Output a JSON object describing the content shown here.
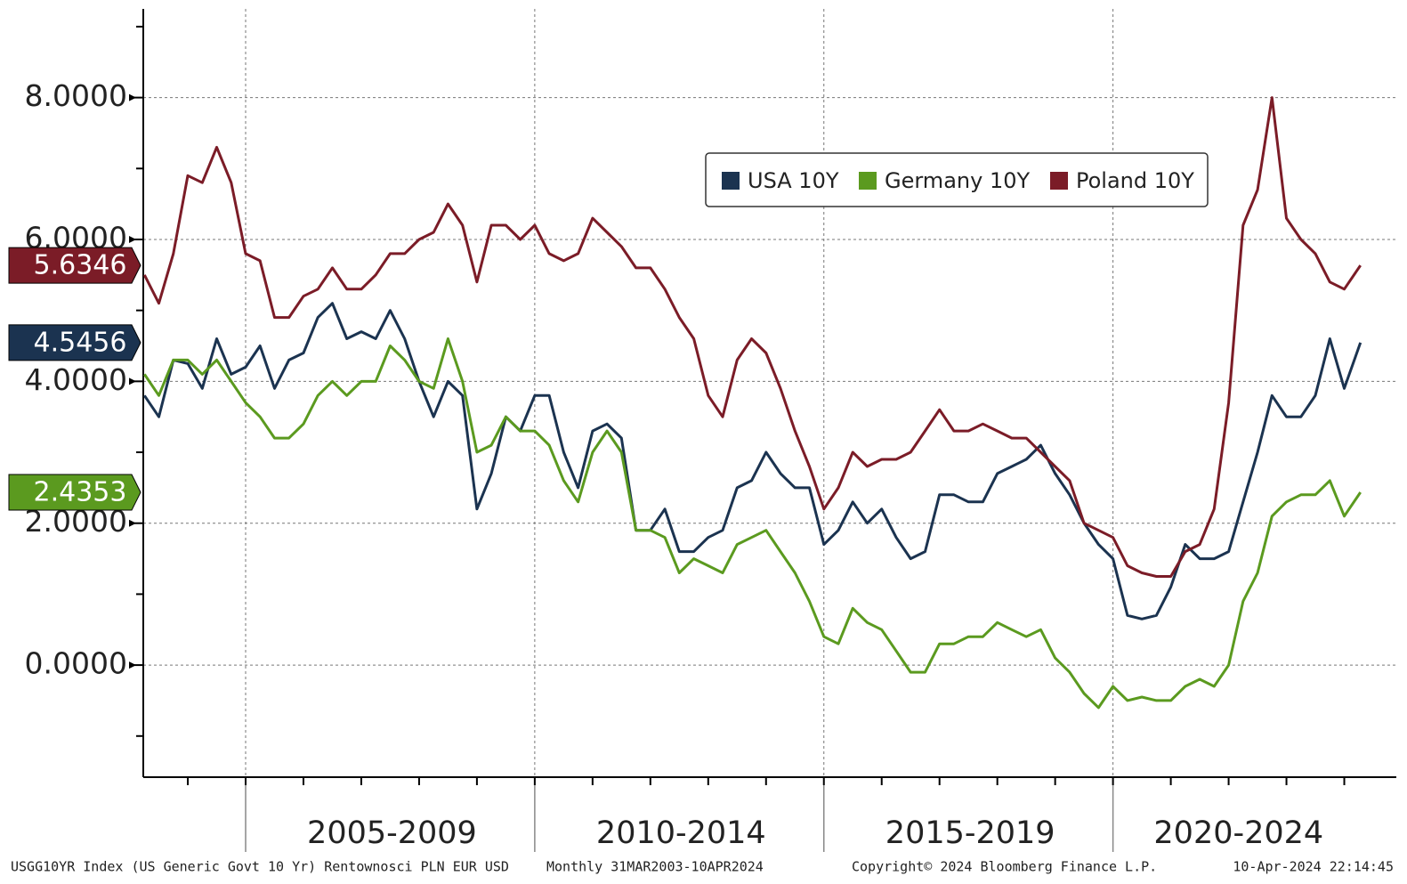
{
  "chart_data": {
    "type": "line",
    "legend": "top-right",
    "grid": true,
    "xlim": [
      2003.23,
      2024.9
    ],
    "ylim": [
      -1.58,
      9.25
    ],
    "yticks": [
      {
        "value": 0,
        "label": "0.0000"
      },
      {
        "value": 2,
        "label": "2.0000"
      },
      {
        "value": 4,
        "label": "4.0000"
      },
      {
        "value": 6,
        "label": "6.0000"
      },
      {
        "value": 8,
        "label": "8.0000"
      }
    ],
    "yminorticks": [
      -1,
      1,
      3,
      5,
      7,
      9
    ],
    "xticks": [
      2004,
      2005,
      2006,
      2007,
      2008,
      2009,
      2010,
      2011,
      2012,
      2013,
      2014,
      2015,
      2016,
      2017,
      2018,
      2019,
      2020,
      2021,
      2022,
      2023,
      2024
    ],
    "periods": [
      {
        "label": "2005-2009",
        "start": 2005,
        "end": 2010
      },
      {
        "label": "2010-2014",
        "start": 2010,
        "end": 2015
      },
      {
        "label": "2015-2019",
        "start": 2015,
        "end": 2020
      },
      {
        "label": "2020-2024",
        "start": 2020,
        "end": 2025
      }
    ],
    "x": [
      2003.25,
      2003.5,
      2003.75,
      2004,
      2004.25,
      2004.5,
      2004.75,
      2005,
      2005.25,
      2005.5,
      2005.75,
      2006,
      2006.25,
      2006.5,
      2006.75,
      2007,
      2007.25,
      2007.5,
      2007.75,
      2008,
      2008.25,
      2008.5,
      2008.75,
      2009,
      2009.25,
      2009.5,
      2009.75,
      2010,
      2010.25,
      2010.5,
      2010.75,
      2011,
      2011.25,
      2011.5,
      2011.75,
      2012,
      2012.25,
      2012.5,
      2012.75,
      2013,
      2013.25,
      2013.5,
      2013.75,
      2014,
      2014.25,
      2014.5,
      2014.75,
      2015,
      2015.25,
      2015.5,
      2015.75,
      2016,
      2016.25,
      2016.5,
      2016.75,
      2017,
      2017.25,
      2017.5,
      2017.75,
      2018,
      2018.25,
      2018.5,
      2018.75,
      2019,
      2019.25,
      2019.5,
      2019.75,
      2020,
      2020.25,
      2020.5,
      2020.75,
      2021,
      2021.25,
      2021.5,
      2021.75,
      2022,
      2022.25,
      2022.5,
      2022.75,
      2023,
      2023.25,
      2023.5,
      2023.75,
      2024,
      2024.28
    ],
    "series": [
      {
        "name": "USA 10Y",
        "color": "#1b3350",
        "values": [
          3.8,
          3.5,
          4.3,
          4.25,
          3.9,
          4.6,
          4.1,
          4.2,
          4.5,
          3.9,
          4.3,
          4.4,
          4.9,
          5.1,
          4.6,
          4.7,
          4.6,
          5.0,
          4.6,
          4.0,
          3.5,
          4.0,
          3.8,
          2.2,
          2.7,
          3.5,
          3.3,
          3.8,
          3.8,
          3.0,
          2.5,
          3.3,
          3.4,
          3.2,
          1.9,
          1.9,
          2.2,
          1.6,
          1.6,
          1.8,
          1.9,
          2.5,
          2.6,
          3.0,
          2.7,
          2.5,
          2.5,
          1.7,
          1.9,
          2.3,
          2.0,
          2.2,
          1.8,
          1.5,
          1.6,
          2.4,
          2.4,
          2.3,
          2.3,
          2.7,
          2.8,
          2.9,
          3.1,
          2.7,
          2.4,
          2.0,
          1.7,
          1.5,
          0.7,
          0.65,
          0.7,
          1.1,
          1.7,
          1.5,
          1.5,
          1.6,
          2.3,
          3.0,
          3.8,
          3.5,
          3.5,
          3.8,
          4.6,
          3.9,
          4.5456
        ]
      },
      {
        "name": "Germany 10Y",
        "color": "#5b9a1f",
        "values": [
          4.1,
          3.8,
          4.3,
          4.3,
          4.1,
          4.3,
          4.0,
          3.7,
          3.5,
          3.2,
          3.2,
          3.4,
          3.8,
          4.0,
          3.8,
          4.0,
          4.0,
          4.5,
          4.3,
          4.0,
          3.9,
          4.6,
          4.0,
          3.0,
          3.1,
          3.5,
          3.3,
          3.3,
          3.1,
          2.6,
          2.3,
          3.0,
          3.3,
          3.0,
          1.9,
          1.9,
          1.8,
          1.3,
          1.5,
          1.4,
          1.3,
          1.7,
          1.8,
          1.9,
          1.6,
          1.3,
          0.9,
          0.4,
          0.3,
          0.8,
          0.6,
          0.5,
          0.2,
          -0.1,
          -0.1,
          0.3,
          0.3,
          0.4,
          0.4,
          0.6,
          0.5,
          0.4,
          0.5,
          0.1,
          -0.1,
          -0.4,
          -0.6,
          -0.3,
          -0.5,
          -0.45,
          -0.5,
          -0.5,
          -0.3,
          -0.2,
          -0.3,
          0.0,
          0.9,
          1.3,
          2.1,
          2.3,
          2.4,
          2.4,
          2.6,
          2.1,
          2.4353
        ]
      },
      {
        "name": "Poland 10Y",
        "color": "#7b1c27",
        "values": [
          5.5,
          5.1,
          5.8,
          6.9,
          6.8,
          7.3,
          6.8,
          5.8,
          5.7,
          4.9,
          4.9,
          5.2,
          5.3,
          5.6,
          5.3,
          5.3,
          5.5,
          5.8,
          5.8,
          6.0,
          6.1,
          6.5,
          6.2,
          5.4,
          6.2,
          6.2,
          6.0,
          6.2,
          5.8,
          5.7,
          5.8,
          6.3,
          6.1,
          5.9,
          5.6,
          5.6,
          5.3,
          4.9,
          4.6,
          3.8,
          3.5,
          4.3,
          4.6,
          4.4,
          3.9,
          3.3,
          2.8,
          2.2,
          2.5,
          3.0,
          2.8,
          2.9,
          2.9,
          3.0,
          3.3,
          3.6,
          3.3,
          3.3,
          3.4,
          3.3,
          3.2,
          3.2,
          3.0,
          2.8,
          2.6,
          2.0,
          1.9,
          1.8,
          1.4,
          1.3,
          1.25,
          1.25,
          1.6,
          1.7,
          2.2,
          3.7,
          6.2,
          6.7,
          8.0,
          6.3,
          6.0,
          5.8,
          5.4,
          5.3,
          5.6346
        ]
      }
    ],
    "footer": {
      "left": "USGG10YR Index (US Generic Govt 10 Yr) Rentownosci PLN EUR USD",
      "period": "Monthly 31MAR2003-10APR2024",
      "copyright": "Copyright© 2024 Bloomberg Finance L.P.",
      "timestamp": "10-Apr-2024 22:14:45"
    }
  }
}
